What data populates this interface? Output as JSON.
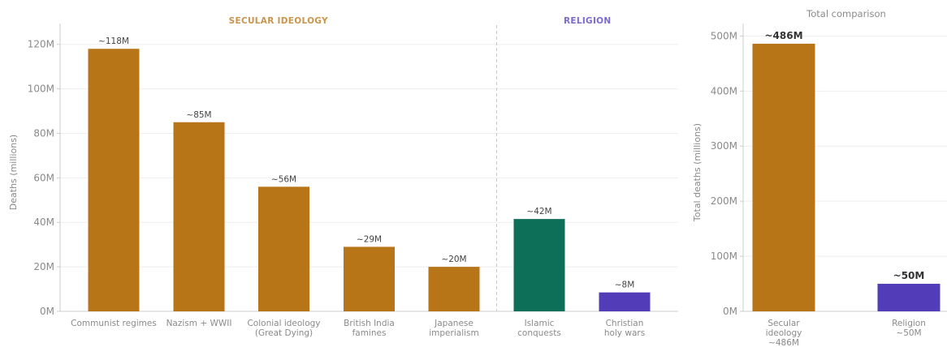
{
  "colors": {
    "secular": "#B87518",
    "islam": "#0E6F58",
    "christian": "#523CB8",
    "section_secular": "#C9954C",
    "section_religion": "#7A6BD0",
    "grid": "#EEEEEE",
    "axis": "#CCCCCC",
    "divider": "#C8C8C8"
  },
  "chart_data": [
    {
      "type": "bar",
      "ylabel": "Deaths (millions)",
      "ylim": [
        0,
        125
      ],
      "yticks": [
        0,
        20,
        40,
        60,
        80,
        100,
        120
      ],
      "ytick_labels": [
        "0M",
        "20M",
        "40M",
        "60M",
        "80M",
        "100M",
        "120M"
      ],
      "grid": true,
      "sections": [
        {
          "label": "SECULAR IDEOLOGY",
          "color_key": "section_secular"
        },
        {
          "label": "RELIGION",
          "color_key": "section_religion"
        }
      ],
      "categories": [
        [
          "Communist regimes"
        ],
        [
          "Nazism + WWII"
        ],
        [
          "Colonial ideology",
          "(Great Dying)"
        ],
        [
          "British India",
          "famines"
        ],
        [
          "Japanese",
          "imperialism"
        ],
        [
          "Islamic",
          "conquests"
        ],
        [
          "Christian",
          "holy wars"
        ]
      ],
      "values": [
        118,
        85,
        56,
        29,
        20,
        41.5,
        8.5
      ],
      "data_labels": [
        "~118M",
        "~85M",
        "~56M",
        "~29M",
        "~20M",
        "~42M",
        "~8M"
      ],
      "color_keys": [
        "secular",
        "secular",
        "secular",
        "secular",
        "secular",
        "islam",
        "christian"
      ]
    },
    {
      "type": "bar",
      "title": "Total comparison",
      "ylabel": "Total deaths (millions)",
      "ylim": [
        0,
        505
      ],
      "yticks": [
        0,
        100,
        200,
        300,
        400,
        500
      ],
      "ytick_labels": [
        "0M",
        "100M",
        "200M",
        "300M",
        "400M",
        "500M"
      ],
      "grid": true,
      "categories": [
        [
          "Secular",
          "ideology",
          "~486M"
        ],
        [
          "Religion",
          "~50M"
        ]
      ],
      "values": [
        486,
        50
      ],
      "data_labels": [
        "~486M",
        "~50M"
      ],
      "color_keys": [
        "secular",
        "christian"
      ]
    }
  ]
}
